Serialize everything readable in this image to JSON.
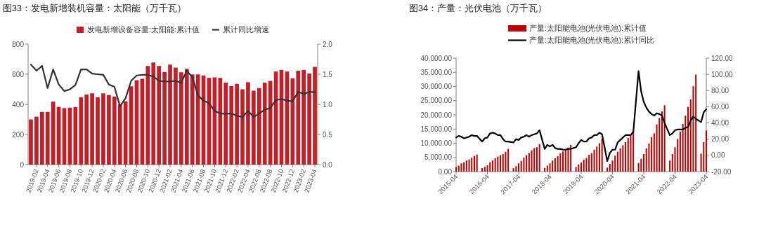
{
  "chart_data": [
    {
      "type": "bar",
      "title": "图33：发电新增装机容量：太阳能（万千瓦）",
      "legend": "top",
      "categories": [
        null,
        "2019-02",
        null,
        "2019-04",
        null,
        "2019-06",
        null,
        "2019-08",
        null,
        "2019-10",
        null,
        "2019-12",
        null,
        "2020-02",
        null,
        "2020-04",
        null,
        "2020-06",
        null,
        "2020-08",
        null,
        "2020-10",
        null,
        "2020-12",
        null,
        "2021-02",
        null,
        "2021-04",
        null,
        "2021-06",
        null,
        "2021-08",
        null,
        "2021-10",
        null,
        "2021-12",
        null,
        "2022-02",
        null,
        "2022-04",
        null,
        "2022-06",
        null,
        "2022-08",
        null,
        "2022-10",
        null,
        "2022-12",
        null,
        "2023-02",
        null,
        "2023-04"
      ],
      "series": [
        {
          "name": "发电新增设备容量:太阳能:累计值",
          "color": "#c0202a",
          "values": [
            300,
            318,
            350,
            350,
            418,
            383,
            375,
            378,
            382,
            447,
            465,
            473,
            447,
            473,
            462,
            452,
            400,
            420,
            520,
            560,
            570,
            655,
            678,
            655,
            615,
            664,
            644,
            613,
            636,
            599,
            599,
            592,
            576,
            579,
            576,
            544,
            521,
            536,
            500,
            547,
            491,
            508,
            544,
            556,
            618,
            629,
            618,
            573,
            624,
            629,
            605,
            649
          ]
        },
        {
          "name": "累计同比增速",
          "type": "line",
          "axis": "y2",
          "color": "#333333",
          "values": [
            1.66,
            1.56,
            1.64,
            1.27,
            1.58,
            1.33,
            1.22,
            1.25,
            1.32,
            1.58,
            1.58,
            1.51,
            1.5,
            1.49,
            1.33,
            1.29,
            0.97,
            1.1,
            1.39,
            1.48,
            1.49,
            1.49,
            1.46,
            1.39,
            1.38,
            1.38,
            1.39,
            1.36,
            1.56,
            1.45,
            1.15,
            1.06,
            1.02,
            0.89,
            0.85,
            0.84,
            0.85,
            0.81,
            0.79,
            0.89,
            0.79,
            0.85,
            0.91,
            0.94,
            1.07,
            1.09,
            1.06,
            1.05,
            1.21,
            1.17,
            1.21,
            1.2
          ]
        }
      ],
      "ylim": [
        0,
        800
      ],
      "yticks": [
        0,
        200,
        400,
        600,
        800
      ],
      "y2lim": [
        0,
        2
      ],
      "y2ticks": [
        {
          "value": 0,
          "label": "0.0"
        },
        {
          "value": 0.5,
          "label": "0.5"
        },
        {
          "value": 1,
          "label": "1.0"
        },
        {
          "value": 1.5,
          "label": "1.5"
        },
        {
          "value": 2,
          "label": "2.0"
        }
      ]
    },
    {
      "type": "bar",
      "title": "图34：产量：光伏电池（万千瓦）",
      "legend": "top",
      "x": [
        "2015-04",
        "2015-05",
        "2015-06",
        "2015-07",
        "2015-08",
        "2015-09",
        "2015-10",
        "2015-11",
        "2015-12",
        "2016-02",
        "2016-03",
        "2016-04",
        "2016-05",
        "2016-06",
        "2016-07",
        "2016-08",
        "2016-09",
        "2016-10",
        "2016-11",
        "2016-12",
        "2017-02",
        "2017-03",
        "2017-04",
        "2017-05",
        "2017-06",
        "2017-07",
        "2017-08",
        "2017-09",
        "2017-10",
        "2017-11",
        "2017-12",
        "2018-02",
        "2018-03",
        "2018-04",
        "2018-05",
        "2018-06",
        "2018-07",
        "2018-08",
        "2018-09",
        "2018-10",
        "2018-11",
        "2018-12",
        "2019-02",
        "2019-03",
        "2019-04",
        "2019-05",
        "2019-06",
        "2019-07",
        "2019-08",
        "2019-09",
        "2019-10",
        "2019-11",
        "2019-12",
        "2020-02",
        "2020-03",
        "2020-04",
        "2020-05",
        "2020-06",
        "2020-07",
        "2020-08",
        "2020-09",
        "2020-10",
        "2020-11",
        "2020-12",
        "2021-02",
        "2021-03",
        "2021-04",
        "2021-05",
        "2021-06",
        "2021-07",
        "2021-08",
        "2021-09",
        "2021-10",
        "2021-11",
        "2021-12",
        "2022-02",
        "2022-03",
        "2022-04",
        "2022-05",
        "2022-06",
        "2022-07",
        "2022-08",
        "2022-09",
        "2022-10",
        "2022-11",
        "2022-12",
        "2023-02",
        "2023-03",
        "2023-04"
      ],
      "series": [
        {
          "name": "产量:太阳能电池(光伏电池):累计值",
          "color": "#c00000",
          "values": [
            1600,
            2100,
            2900,
            3300,
            3900,
            4300,
            4900,
            5500,
            6000,
            1200,
            1700,
            2200,
            3300,
            3900,
            4700,
            5300,
            5800,
            6200,
            7000,
            8000,
            1200,
            1900,
            2900,
            3800,
            4900,
            5800,
            6600,
            7500,
            8300,
            8600,
            9700,
            1300,
            2100,
            2900,
            3900,
            4700,
            5400,
            6400,
            7100,
            7700,
            8500,
            9400,
            1600,
            2500,
            3200,
            4200,
            4800,
            5900,
            6500,
            7700,
            8800,
            10000,
            11600,
            1400,
            2700,
            3900,
            5600,
            7000,
            8200,
            9300,
            10400,
            11900,
            12700,
            14000,
            3000,
            4500,
            6200,
            8200,
            9900,
            12200,
            13500,
            16600,
            18900,
            21200,
            23400,
            3900,
            6200,
            8600,
            11500,
            14100,
            16800,
            19700,
            22800,
            25400,
            30100,
            34200,
            6300,
            10400,
            14500
          ]
        },
        {
          "name": "产量:太阳能电池(光伏电池):累计同比",
          "type": "line",
          "axis": "y2",
          "color": "#000000",
          "values": [
            22,
            24,
            23,
            21,
            22,
            23,
            25,
            24,
            24,
            17,
            21,
            22,
            27,
            28,
            27,
            25,
            25,
            20,
            17,
            17,
            16,
            20,
            19,
            22,
            23,
            25,
            23,
            25,
            26,
            27,
            31,
            8,
            13,
            11,
            13,
            9,
            8,
            8,
            7,
            7,
            8,
            8,
            10,
            15,
            19,
            17,
            17,
            21,
            22,
            25,
            25,
            28,
            26,
            -7,
            3,
            7,
            7,
            16,
            19,
            22,
            25,
            25,
            25,
            29,
            104,
            79,
            66,
            59,
            54,
            51,
            49,
            52,
            51,
            49,
            40,
            25,
            27,
            31,
            32,
            32,
            32,
            34,
            35,
            43,
            48,
            45,
            41,
            53,
            57
          ]
        }
      ],
      "xlim": [
        "2015-04",
        "2023-04"
      ],
      "xticks": [
        "2015-04",
        "2016-04",
        "2017-04",
        "2018-04",
        "2019-04",
        "2020-04",
        "2021-04",
        "2022-04",
        "2023-04"
      ],
      "ylim": [
        0,
        40000
      ],
      "yticks": [
        {
          "value": 0,
          "label": "0.00"
        },
        {
          "value": 5000,
          "label": "5,000.00"
        },
        {
          "value": 10000,
          "label": "10,000.00"
        },
        {
          "value": 15000,
          "label": "15,000.00"
        },
        {
          "value": 20000,
          "label": "20,000.00"
        },
        {
          "value": 25000,
          "label": "25,000.00"
        },
        {
          "value": 30000,
          "label": "30,000.00"
        },
        {
          "value": 35000,
          "label": "35,000.00"
        },
        {
          "value": 40000,
          "label": "40,000.00"
        }
      ],
      "y2lim": [
        -20,
        120
      ],
      "y2ticks": [
        {
          "value": -20,
          "label": "-20.00"
        },
        {
          "value": 0,
          "label": "0.00"
        },
        {
          "value": 20,
          "label": "20.00"
        },
        {
          "value": 40,
          "label": "40.00"
        },
        {
          "value": 60,
          "label": "60.00"
        },
        {
          "value": 80,
          "label": "80.00"
        },
        {
          "value": 100,
          "label": "100.00"
        },
        {
          "value": 120,
          "label": "120.00"
        }
      ]
    }
  ]
}
